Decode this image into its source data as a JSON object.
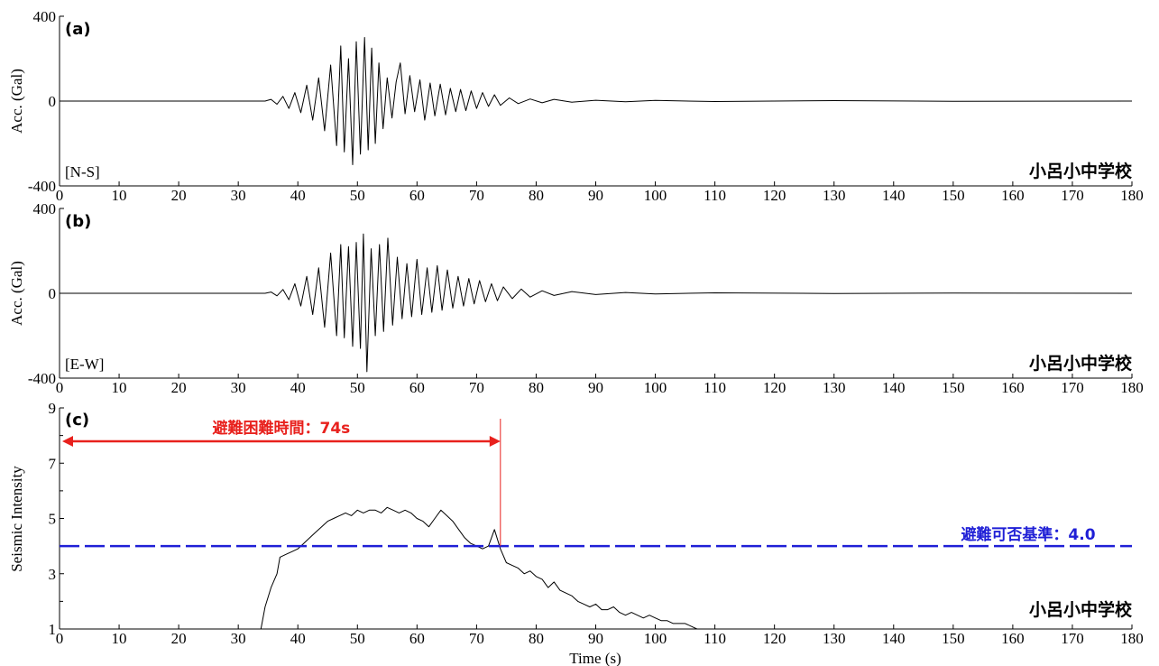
{
  "chart_data": [
    {
      "type": "line",
      "panel_label": "(a)",
      "component": "[N-S]",
      "station": "小呂小中学校",
      "ylabel": "Acc. (Gal)",
      "xlim": [
        0,
        180
      ],
      "ylim": [
        -400,
        400
      ],
      "xticks": [
        0,
        10,
        20,
        30,
        40,
        50,
        60,
        70,
        80,
        90,
        100,
        110,
        120,
        130,
        140,
        150,
        160,
        170,
        180
      ],
      "yticks": [
        -400,
        0,
        400
      ],
      "series": [
        {
          "x": [
            0,
            34.5,
            35.5,
            36.5,
            37.5,
            38.5,
            39.5,
            40.5,
            41.5,
            42.5,
            43.5,
            44.5,
            45.5,
            46.5,
            47.2,
            47.8,
            48.5,
            49.2,
            49.8,
            50.5,
            51.2,
            51.8,
            52.4,
            53.0,
            53.6,
            54.3,
            55.0,
            55.8,
            56.5,
            57.2,
            58.0,
            58.8,
            59.6,
            60.5,
            61.3,
            62.2,
            63.0,
            63.9,
            64.8,
            65.6,
            66.5,
            67.3,
            68.2,
            69.1,
            70.0,
            71.0,
            72.0,
            73.0,
            74.0,
            75.5,
            77.0,
            79.0,
            81.0,
            83.0,
            86.0,
            90.0,
            95.0,
            100.0,
            110.0,
            130.0,
            150.0,
            180.0
          ],
          "y": [
            0,
            0,
            8,
            -15,
            22,
            -35,
            40,
            -55,
            75,
            -90,
            110,
            -140,
            170,
            -210,
            260,
            -240,
            200,
            -300,
            280,
            -250,
            300,
            -230,
            250,
            -200,
            180,
            -130,
            110,
            -80,
            90,
            180,
            -60,
            120,
            -50,
            100,
            -90,
            85,
            -70,
            80,
            -65,
            60,
            -50,
            55,
            -45,
            48,
            -35,
            40,
            -25,
            30,
            -20,
            15,
            -12,
            10,
            -8,
            8,
            -5,
            4,
            -3,
            3,
            -2,
            2,
            -1,
            0
          ]
        }
      ]
    },
    {
      "type": "line",
      "panel_label": "(b)",
      "component": "[E-W]",
      "station": "小呂小中学校",
      "ylabel": "Acc. (Gal)",
      "xlim": [
        0,
        180
      ],
      "ylim": [
        -400,
        400
      ],
      "xticks": [
        0,
        10,
        20,
        30,
        40,
        50,
        60,
        70,
        80,
        90,
        100,
        110,
        120,
        130,
        140,
        150,
        160,
        170,
        180
      ],
      "yticks": [
        -400,
        0,
        400
      ],
      "series": [
        {
          "x": [
            0,
            34.5,
            35.5,
            36.5,
            37.5,
            38.5,
            39.5,
            40.5,
            41.5,
            42.5,
            43.5,
            44.5,
            45.5,
            46.5,
            47.2,
            47.8,
            48.5,
            49.2,
            49.8,
            50.5,
            51.0,
            51.6,
            52.3,
            53.0,
            53.7,
            54.4,
            55.1,
            55.9,
            56.7,
            57.5,
            58.3,
            59.1,
            60.0,
            60.8,
            61.7,
            62.5,
            63.4,
            64.2,
            65.1,
            66.0,
            66.9,
            67.8,
            68.7,
            69.6,
            70.5,
            71.5,
            72.5,
            73.5,
            74.5,
            76.0,
            77.5,
            79.0,
            81.0,
            83.0,
            86.0,
            90.0,
            95.0,
            100.0,
            110.0,
            130.0,
            150.0,
            180.0
          ],
          "y": [
            0,
            0,
            6,
            -12,
            18,
            -30,
            45,
            -60,
            80,
            -100,
            120,
            -160,
            190,
            -200,
            230,
            -210,
            220,
            -250,
            240,
            -260,
            280,
            -370,
            210,
            -200,
            230,
            -180,
            260,
            -150,
            170,
            -120,
            140,
            -110,
            160,
            -100,
            120,
            -90,
            130,
            -80,
            110,
            -70,
            80,
            -60,
            70,
            -50,
            60,
            -40,
            45,
            -35,
            30,
            -25,
            20,
            -18,
            12,
            -10,
            8,
            -6,
            4,
            -3,
            2,
            -1,
            1,
            0
          ]
        }
      ]
    },
    {
      "type": "line",
      "panel_label": "(c)",
      "station": "小呂小中学校",
      "ylabel": "Seismic Intensity",
      "xlabel": "Time (s)",
      "xlim": [
        0,
        180
      ],
      "ylim": [
        1,
        9
      ],
      "xticks": [
        0,
        10,
        20,
        30,
        40,
        50,
        60,
        70,
        80,
        90,
        100,
        110,
        120,
        130,
        140,
        150,
        160,
        170,
        180
      ],
      "yticks": [
        1,
        3,
        5,
        7,
        9
      ],
      "series": [
        {
          "x": [
            33.8,
            34.5,
            35.5,
            36.5,
            37.0,
            38.0,
            39.0,
            40.0,
            41.0,
            42.0,
            43.0,
            44.0,
            45.0,
            46.0,
            47.0,
            48.0,
            49.0,
            50.0,
            51.0,
            52.0,
            53.0,
            54.0,
            55.0,
            56.0,
            57.0,
            58.0,
            59.0,
            60.0,
            61.0,
            62.0,
            63.0,
            64.0,
            65.0,
            66.0,
            67.0,
            68.0,
            69.0,
            70.0,
            71.0,
            72.0,
            73.0,
            74.0,
            75.0,
            76.0,
            77.0,
            78.0,
            79.0,
            80.0,
            81.0,
            82.0,
            83.0,
            84.0,
            85.0,
            86.0,
            87.0,
            88.0,
            89.0,
            90.0,
            91.0,
            92.0,
            93.0,
            94.0,
            95.0,
            96.0,
            97.0,
            98.0,
            99.0,
            100.0,
            101.0,
            102.0,
            103.0,
            104.0,
            105.0,
            106.0,
            107.0
          ],
          "y": [
            1.0,
            1.8,
            2.5,
            3.0,
            3.6,
            3.7,
            3.8,
            3.9,
            4.1,
            4.3,
            4.5,
            4.7,
            4.9,
            5.0,
            5.1,
            5.2,
            5.1,
            5.3,
            5.2,
            5.3,
            5.3,
            5.2,
            5.4,
            5.3,
            5.2,
            5.3,
            5.2,
            5.0,
            4.9,
            4.7,
            5.0,
            5.3,
            5.1,
            4.9,
            4.6,
            4.3,
            4.1,
            4.0,
            3.9,
            4.0,
            4.6,
            3.9,
            3.4,
            3.3,
            3.2,
            3.0,
            3.1,
            2.9,
            2.8,
            2.5,
            2.7,
            2.4,
            2.3,
            2.2,
            2.0,
            1.9,
            1.8,
            1.9,
            1.7,
            1.7,
            1.8,
            1.6,
            1.5,
            1.6,
            1.5,
            1.4,
            1.5,
            1.4,
            1.3,
            1.3,
            1.2,
            1.2,
            1.2,
            1.1,
            1.0
          ]
        }
      ],
      "threshold": {
        "value": 4.0,
        "label": "避難可否基準：4.0",
        "color": "#1f1fd6"
      },
      "difficulty": {
        "x_end": 74,
        "label": "避難困難時間：74s",
        "color": "#e8211d"
      }
    }
  ]
}
